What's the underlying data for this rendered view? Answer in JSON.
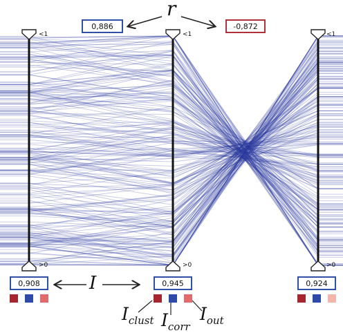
{
  "correlations": [
    {
      "value": "0,886",
      "sign": "positive"
    },
    {
      "value": "-0,872",
      "sign": "negative"
    }
  ],
  "axis_scores": [
    "0,908",
    "0,945",
    "0,924"
  ],
  "symbols": {
    "r": "r",
    "I": "I",
    "I_clust_sub": "clust",
    "I_corr_sub": "corr",
    "I_out_sub": "out"
  },
  "axis_top_marker": "<1",
  "axis_bottom_marker": ">0",
  "colors": {
    "lines": "#2b3a9e",
    "box_positive": "#2f4fa6",
    "box_negative": "#b0303a",
    "clust": "#a6262f",
    "corr": "#2e4aa8",
    "out_a": "#e06c6c",
    "out_b": "#f2b7a8"
  },
  "swatch_groups": [
    [
      "clust",
      "corr",
      "out_a"
    ],
    [
      "clust",
      "corr",
      "out_a"
    ],
    [
      "clust",
      "corr",
      "out_b"
    ]
  ]
}
